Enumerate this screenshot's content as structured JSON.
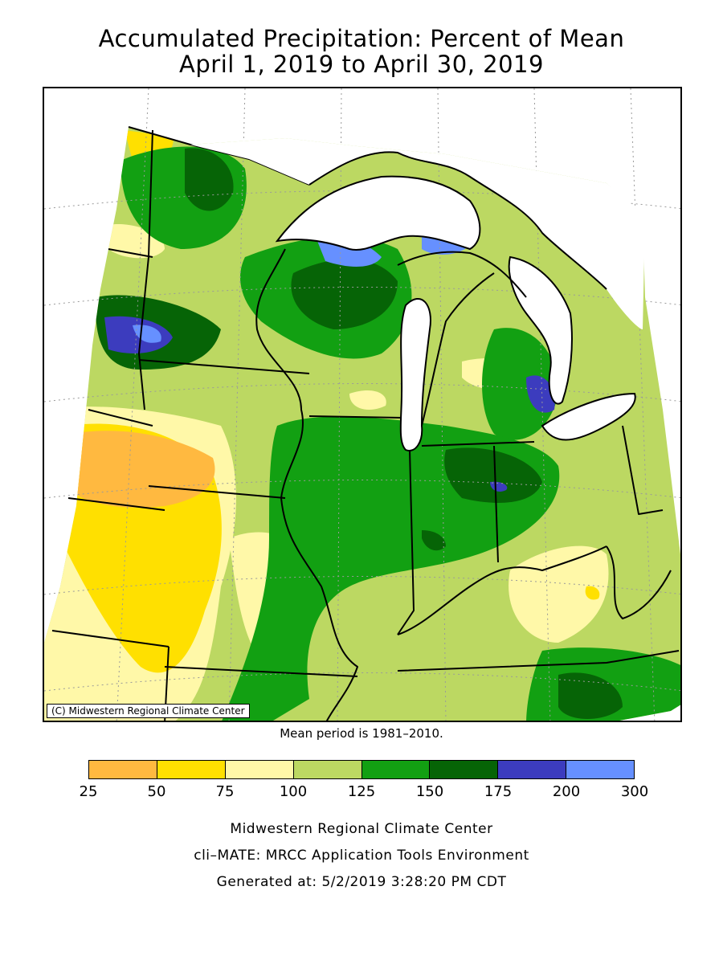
{
  "title_line1": "Accumulated Precipitation: Percent of Mean",
  "title_line2": "April 1, 2019 to April 30, 2019",
  "map": {
    "copyright": "(C) Midwestern Regional Climate Center",
    "mean_period": "Mean period is 1981–2010."
  },
  "legend": {
    "bins": [
      {
        "range": "25-50",
        "color": "#ffb940"
      },
      {
        "range": "50-75",
        "color": "#ffe000"
      },
      {
        "range": "75-100",
        "color": "#fff8a8"
      },
      {
        "range": "100-125",
        "color": "#bcd862"
      },
      {
        "range": "125-150",
        "color": "#12a012"
      },
      {
        "range": "150-175",
        "color": "#066406"
      },
      {
        "range": "175-200",
        "color": "#3c3cbe"
      },
      {
        "range": "200-300",
        "color": "#6690ff"
      }
    ],
    "ticks": [
      "25",
      "50",
      "75",
      "100",
      "125",
      "150",
      "175",
      "200",
      "300"
    ]
  },
  "footer": {
    "line1": "Midwestern Regional Climate Center",
    "line2": "cli–MATE: MRCC Application Tools Environment",
    "line3": "Generated at: 5/2/2019 3:28:20 PM CDT"
  }
}
